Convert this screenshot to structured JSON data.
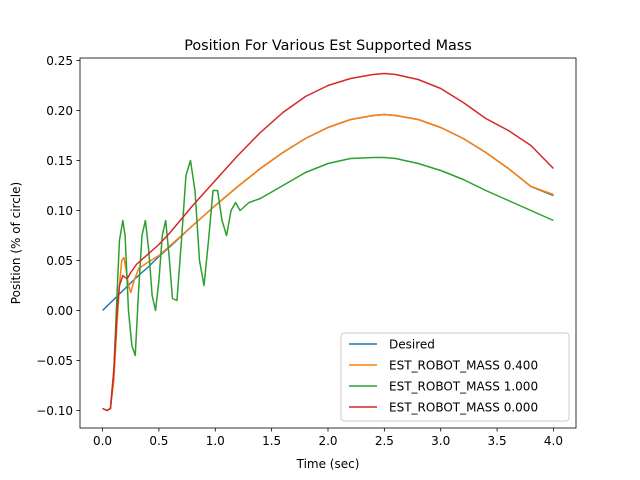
{
  "chart_data": {
    "type": "line",
    "title": "Position For Various Est Supported Mass",
    "xlabel": "Time (sec)",
    "ylabel": "Position (% of circle)",
    "xlim": [
      -0.2,
      4.2
    ],
    "ylim": [
      -0.1175,
      0.2525
    ],
    "xticks": [
      0.0,
      0.5,
      1.0,
      1.5,
      2.0,
      2.5,
      3.0,
      3.5,
      4.0
    ],
    "xtick_labels": [
      "0.0",
      "0.5",
      "1.0",
      "1.5",
      "2.0",
      "2.5",
      "3.0",
      "3.5",
      "4.0"
    ],
    "yticks": [
      -0.1,
      -0.05,
      0.0,
      0.05,
      0.1,
      0.15,
      0.2,
      0.25
    ],
    "ytick_labels": [
      "−0.10",
      "−0.05",
      "0.00",
      "0.05",
      "0.10",
      "0.15",
      "0.20",
      "0.25"
    ],
    "grid": false,
    "legend_position": "lower-right",
    "series": [
      {
        "name": "Desired",
        "color": "#1f77b4",
        "x": [
          0.0,
          0.1,
          0.2,
          0.3,
          0.4,
          0.5,
          0.6,
          0.8,
          1.0,
          1.2,
          1.4,
          1.6,
          1.8,
          2.0,
          2.2,
          2.4,
          2.5,
          2.6,
          2.8,
          3.0,
          3.2,
          3.4,
          3.6,
          3.8,
          4.0
        ],
        "values": [
          0.0,
          0.011,
          0.022,
          0.033,
          0.043,
          0.054,
          0.064,
          0.085,
          0.105,
          0.124,
          0.142,
          0.158,
          0.172,
          0.183,
          0.191,
          0.195,
          0.196,
          0.195,
          0.191,
          0.183,
          0.172,
          0.158,
          0.142,
          0.124,
          0.115
        ]
      },
      {
        "name": "EST_ROBOT_MASS 0.400",
        "color": "#ff7f0e",
        "x": [
          0.0,
          0.04,
          0.07,
          0.1,
          0.13,
          0.15,
          0.17,
          0.19,
          0.21,
          0.23,
          0.25,
          0.28,
          0.32,
          0.4,
          0.5,
          0.6,
          0.8,
          1.0,
          1.2,
          1.4,
          1.6,
          1.8,
          2.0,
          2.2,
          2.4,
          2.5,
          2.6,
          2.8,
          3.0,
          3.2,
          3.4,
          3.6,
          3.8,
          4.0
        ],
        "values": [
          -0.098,
          -0.1,
          -0.098,
          -0.07,
          -0.01,
          0.025,
          0.05,
          0.053,
          0.04,
          0.025,
          0.018,
          0.03,
          0.042,
          0.048,
          0.055,
          0.065,
          0.085,
          0.105,
          0.124,
          0.142,
          0.158,
          0.172,
          0.183,
          0.191,
          0.195,
          0.196,
          0.195,
          0.191,
          0.183,
          0.172,
          0.158,
          0.142,
          0.124,
          0.116
        ]
      },
      {
        "name": "EST_ROBOT_MASS 1.000",
        "color": "#2ca02c",
        "x": [
          0.0,
          0.04,
          0.07,
          0.1,
          0.13,
          0.15,
          0.18,
          0.2,
          0.23,
          0.26,
          0.29,
          0.32,
          0.35,
          0.38,
          0.41,
          0.44,
          0.47,
          0.5,
          0.53,
          0.56,
          0.59,
          0.62,
          0.66,
          0.7,
          0.74,
          0.78,
          0.82,
          0.86,
          0.9,
          0.94,
          0.98,
          1.02,
          1.06,
          1.1,
          1.14,
          1.18,
          1.22,
          1.3,
          1.4,
          1.6,
          1.8,
          2.0,
          2.2,
          2.4,
          2.5,
          2.6,
          2.8,
          3.0,
          3.2,
          3.4,
          3.6,
          3.8,
          4.0
        ],
        "values": [
          -0.098,
          -0.1,
          -0.098,
          -0.06,
          0.02,
          0.07,
          0.09,
          0.075,
          0.0,
          -0.035,
          -0.045,
          0.02,
          0.075,
          0.09,
          0.06,
          0.015,
          0.0,
          0.03,
          0.075,
          0.09,
          0.055,
          0.012,
          0.01,
          0.07,
          0.135,
          0.15,
          0.12,
          0.05,
          0.025,
          0.07,
          0.12,
          0.12,
          0.09,
          0.075,
          0.1,
          0.108,
          0.1,
          0.108,
          0.112,
          0.125,
          0.138,
          0.147,
          0.152,
          0.153,
          0.153,
          0.152,
          0.147,
          0.14,
          0.131,
          0.12,
          0.11,
          0.1,
          0.09
        ]
      },
      {
        "name": "EST_ROBOT_MASS 0.000",
        "color": "#d62728",
        "x": [
          0.0,
          0.04,
          0.07,
          0.1,
          0.13,
          0.15,
          0.18,
          0.2,
          0.22,
          0.25,
          0.3,
          0.4,
          0.5,
          0.6,
          0.8,
          1.0,
          1.2,
          1.4,
          1.6,
          1.8,
          2.0,
          2.2,
          2.4,
          2.5,
          2.6,
          2.8,
          3.0,
          3.2,
          3.4,
          3.6,
          3.8,
          4.0
        ],
        "values": [
          -0.098,
          -0.1,
          -0.098,
          -0.06,
          0.0,
          0.025,
          0.035,
          0.033,
          0.032,
          0.038,
          0.046,
          0.056,
          0.066,
          0.078,
          0.105,
          0.13,
          0.155,
          0.178,
          0.198,
          0.214,
          0.225,
          0.232,
          0.236,
          0.237,
          0.236,
          0.231,
          0.222,
          0.208,
          0.192,
          0.18,
          0.165,
          0.142
        ]
      }
    ]
  }
}
